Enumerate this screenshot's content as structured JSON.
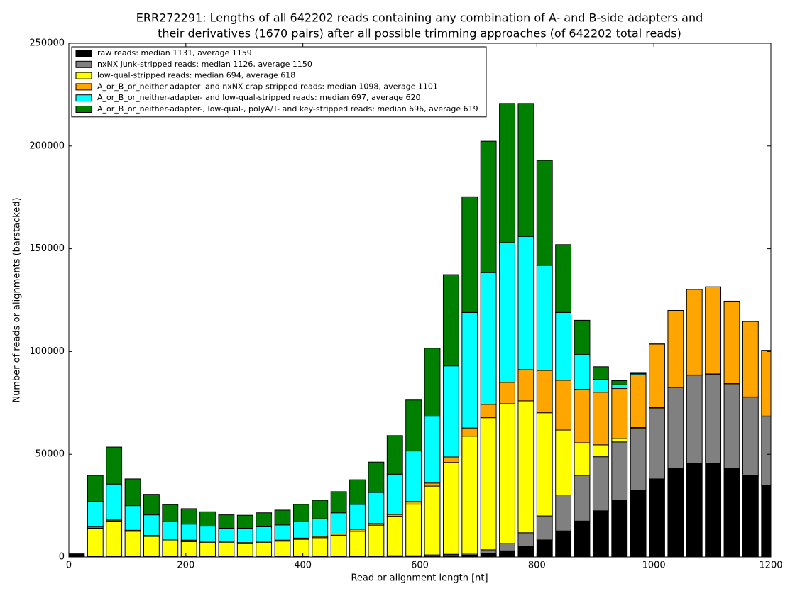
{
  "chart_data": {
    "type": "stacked-bar",
    "title": [
      "ERR272291: Lengths of all 642202 reads containing any combination of A- and B-side adapters and",
      "their derivatives (1670 pairs) after all possible trimming approaches (of 642202 total reads)"
    ],
    "x_label": "Read or alignment length [nt]",
    "y_label": "Number of reads or alignments (barstacked)",
    "x": [
      0,
      32,
      64,
      96,
      128,
      160,
      192,
      224,
      256,
      288,
      320,
      352,
      384,
      416,
      448,
      480,
      512,
      544,
      576,
      608,
      640,
      672,
      704,
      736,
      768,
      800,
      832,
      864,
      896,
      928,
      960,
      992,
      1024,
      1056,
      1088,
      1120,
      1152,
      1184
    ],
    "xlim": [
      0,
      1200
    ],
    "xticks": [
      0,
      200,
      400,
      600,
      800,
      1000,
      1200
    ],
    "ylim": [
      0,
      250000
    ],
    "yticks": [
      0,
      50000,
      100000,
      150000,
      200000,
      250000
    ],
    "legend": "upper left",
    "series": [
      {
        "name": "raw reads: median 1131, average 1159",
        "color": "#000000",
        "values": [
          1500,
          200,
          200,
          100,
          100,
          100,
          100,
          100,
          100,
          100,
          100,
          100,
          100,
          100,
          100,
          100,
          100,
          300,
          300,
          500,
          700,
          1000,
          1800,
          3000,
          5000,
          8300,
          12700,
          17500,
          22500,
          27800,
          32500,
          38000,
          43000,
          45700,
          45600,
          43000,
          39600,
          34700
        ]
      },
      {
        "name": "nxNX junk-stripped reads: median 1126, average 1150",
        "color": "#808080",
        "values": [
          0,
          200,
          200,
          200,
          200,
          200,
          200,
          200,
          200,
          200,
          200,
          200,
          200,
          200,
          200,
          200,
          300,
          300,
          300,
          500,
          600,
          900,
          1700,
          3700,
          6800,
          11700,
          17500,
          22200,
          26300,
          28200,
          30100,
          34500,
          39500,
          42800,
          43400,
          41300,
          38200,
          33800
        ]
      },
      {
        "name": "low-qual-stripped reads: median 694, average 618",
        "color": "#ffff00",
        "values": [
          0,
          13600,
          17100,
          12200,
          9700,
          8000,
          7200,
          6700,
          6500,
          6200,
          6700,
          7400,
          8300,
          9100,
          10200,
          12200,
          15100,
          19200,
          25100,
          33500,
          44700,
          56900,
          64300,
          67900,
          64200,
          50200,
          31600,
          15900,
          5800,
          1700,
          400,
          200,
          100,
          100,
          100,
          100,
          100,
          100
        ]
      },
      {
        "name": "A_or_B_or_neither-adapter- and nxNX-crap-stripped reads: median 1098, average 1101",
        "color": "#ffa500",
        "values": [
          0,
          600,
          500,
          500,
          500,
          500,
          700,
          600,
          500,
          500,
          600,
          500,
          600,
          600,
          700,
          1000,
          800,
          900,
          1300,
          1500,
          2700,
          4000,
          6500,
          10400,
          15200,
          20600,
          24200,
          26000,
          25600,
          24300,
          25800,
          30900,
          37400,
          41600,
          42400,
          40100,
          36700,
          32000
        ]
      },
      {
        "name": "A_or_B_or_neither-adapter- and low-qual-stripped reads: median 697, average 620",
        "color": "#00ffff",
        "values": [
          0,
          12400,
          17500,
          12000,
          10000,
          8400,
          7800,
          7400,
          6700,
          7000,
          7100,
          7400,
          8000,
          8600,
          10300,
          12100,
          15100,
          19600,
          24600,
          32500,
          44300,
          56200,
          64100,
          68000,
          64800,
          51100,
          33000,
          16900,
          6300,
          1800,
          500,
          100,
          0,
          0,
          0,
          0,
          0,
          0
        ]
      },
      {
        "name": "A_or_B_or_neither-adapter-, low-qual-, polyA/T- and key-stripped reads: median 696, average 619",
        "color": "#008000",
        "values": [
          0,
          12700,
          18000,
          13000,
          10000,
          8300,
          7500,
          7000,
          6500,
          6300,
          6800,
          7200,
          8400,
          9000,
          10300,
          12000,
          14800,
          18800,
          24800,
          33100,
          44400,
          56300,
          63900,
          67700,
          64700,
          51100,
          33000,
          16700,
          6100,
          2000,
          500,
          0,
          0,
          0,
          0,
          0,
          0,
          0
        ]
      }
    ]
  }
}
